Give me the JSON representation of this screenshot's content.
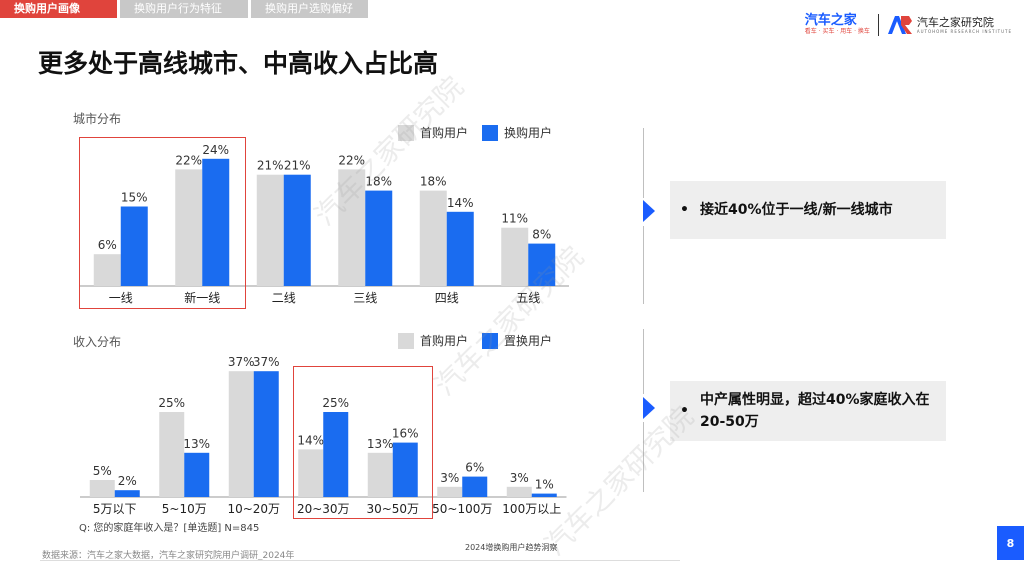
{
  "tabs": [
    "换购用户画像",
    "换购用户行为特征",
    "换购用户选购偏好"
  ],
  "logo": {
    "brand_name": "汽车之家",
    "brand_slogan": "看车 · 买车 · 用车 · 换车",
    "institute_name": "汽车之家研究院",
    "institute_en": "AUTOHOME RESEARCH INSTITUTE"
  },
  "page_title": "更多处于高线城市、中高收入占比高",
  "colors": {
    "first_buy": "#d9d9d9",
    "replace": "#1a6cf0",
    "accent_red": "#e0443c"
  },
  "chart_data": [
    {
      "type": "bar",
      "title": "城市分布",
      "categories": [
        "一线",
        "新一线",
        "二线",
        "三线",
        "四线",
        "五线"
      ],
      "series": [
        {
          "name": "首购用户",
          "values": [
            6,
            22,
            21,
            22,
            18,
            11
          ]
        },
        {
          "name": "换购用户",
          "values": [
            15,
            24,
            21,
            18,
            14,
            8
          ]
        }
      ],
      "value_suffix": "%",
      "legend": "top-right",
      "highlight_categories": [
        "一线",
        "新一线"
      ]
    },
    {
      "type": "bar",
      "title": "收入分布",
      "categories": [
        "5万以下",
        "5~10万",
        "10~20万",
        "20~30万",
        "30~50万",
        "50~100万",
        "100万以上"
      ],
      "series": [
        {
          "name": "首购用户",
          "values": [
            5,
            25,
            37,
            14,
            13,
            3,
            3
          ]
        },
        {
          "name": "置换用户",
          "values": [
            2,
            13,
            37,
            25,
            16,
            6,
            1
          ]
        }
      ],
      "value_suffix": "%",
      "legend": "top-right",
      "highlight_categories": [
        "20~30万",
        "30~50万"
      ]
    }
  ],
  "callouts": [
    {
      "bullet": "•",
      "text": "接近40%位于一线/新一线城市"
    },
    {
      "bullet": "•",
      "text": "中产属性明显，超过40%家庭收入在20-50万"
    }
  ],
  "question": "Q:   您的家庭年收入是？[单选题]  N=845",
  "footer": {
    "source": "数据来源：汽车之家大数据，汽车之家研究院用户调研_2024年",
    "center": "2024增换购用户趋势洞察",
    "page_number": "8"
  },
  "watermark_text": "汽车之家研究院"
}
